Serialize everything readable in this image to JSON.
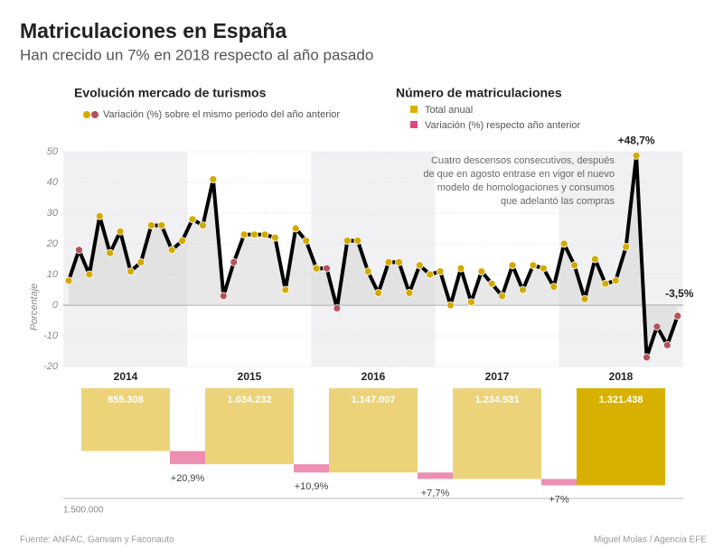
{
  "title": "Matriculaciones en España",
  "subtitle": "Han crecido un 7% en 2018 respecto al año pasado",
  "source": "Fuente: ANFAC, Ganvam y Faconauto",
  "credit": "Miguel Mulas / Agencia EFE",
  "chart_data": [
    {
      "type": "line",
      "title": "Evolución mercado de turismos",
      "ylabel": "Porcentaje",
      "ylim": [
        -20,
        50
      ],
      "yticks": [
        -20,
        -10,
        0,
        10,
        20,
        30,
        40,
        50
      ],
      "grid": true,
      "annotation": [
        "Cuatro descensos consecutivos, después",
        "de que en agosto entrase en vigor el nuevo",
        "modelo de homologaciones y consumos",
        "que adelantó las compras"
      ],
      "series": [
        {
          "name": "Variación (%) sobre el mismo periodo del año anterior",
          "color": "#000000",
          "values": [
            8,
            18,
            10,
            29,
            17,
            24,
            11,
            14,
            26,
            26,
            18,
            21,
            28,
            26,
            41,
            3,
            14,
            23,
            23,
            23,
            22,
            5,
            25,
            21,
            12,
            12,
            -1,
            21,
            21,
            11,
            4,
            14,
            14,
            4,
            13,
            10,
            11,
            0,
            12,
            1,
            11,
            7,
            3,
            13,
            5,
            13,
            12,
            6,
            20,
            13,
            2,
            15,
            7,
            8,
            19,
            48.7,
            -17,
            -7,
            -13,
            -3.5
          ],
          "value_labels": [
            null,
            null,
            null,
            null,
            null,
            null,
            null,
            null,
            null,
            null,
            null,
            null,
            null,
            null,
            null,
            null,
            null,
            null,
            null,
            null,
            null,
            null,
            null,
            null,
            null,
            null,
            null,
            null,
            null,
            null,
            null,
            null,
            null,
            null,
            null,
            null,
            null,
            null,
            null,
            null,
            null,
            null,
            null,
            null,
            null,
            null,
            null,
            null,
            null,
            null,
            null,
            null,
            null,
            null,
            null,
            "+48,7%",
            null,
            null,
            null,
            "-3,5%"
          ],
          "marker_colors": [
            "#d4a900",
            "#b5505a",
            "#d4a900",
            "#d4a900",
            "#d4a900",
            "#d4a900",
            "#d4a900",
            "#d4a900",
            "#d4a900",
            "#d4a900",
            "#d4a900",
            "#d4a900",
            "#d4a900",
            "#d4a900",
            "#d4a900",
            "#b5505a",
            "#b5505a",
            "#d4a900",
            "#d4a900",
            "#d4a900",
            "#d4a900",
            "#d4a900",
            "#d4a900",
            "#d4a900",
            "#d4a900",
            "#b5505a",
            "#b5505a",
            "#d4a900",
            "#d4a900",
            "#d4a900",
            "#d4a900",
            "#d4a900",
            "#d4a900",
            "#d4a900",
            "#d4a900",
            "#d4a900",
            "#d4a900",
            "#d4a900",
            "#d4a900",
            "#d4a900",
            "#d4a900",
            "#d4a900",
            "#d4a900",
            "#d4a900",
            "#d4a900",
            "#d4a900",
            "#d4a900",
            "#d4a900",
            "#d4a900",
            "#d4a900",
            "#d4a900",
            "#d4a900",
            "#d4a900",
            "#d4a900",
            "#d4a900",
            "#d4a900",
            "#b5505a",
            "#b5505a",
            "#b5505a",
            "#b5505a"
          ]
        }
      ]
    },
    {
      "type": "bar",
      "title": "Número de matriculaciones",
      "categories": [
        "2014",
        "2015",
        "2016",
        "2017",
        "2018"
      ],
      "ylim": [
        0,
        1500000
      ],
      "yticks": [
        {
          "value": 1500000,
          "label": "1.500.000"
        }
      ],
      "series": [
        {
          "name": "Total anual",
          "color": "#d8b100",
          "colors": [
            "#ecd37a",
            "#ecd37a",
            "#ecd37a",
            "#ecd37a",
            "#d8b100"
          ],
          "values": [
            855308,
            1034232,
            1147007,
            1234931,
            1321438
          ],
          "value_labels": [
            "855.308",
            "1.034.232",
            "1.147.007",
            "1.234.931",
            "1.321.438"
          ]
        },
        {
          "name": "Variación (%) respecto año anterior",
          "color": "#e0457f",
          "values": [
            null,
            20.9,
            10.9,
            7.7,
            7
          ],
          "value_labels": [
            null,
            "+20,9%",
            "+10,9%",
            "+7,7%",
            "+7%"
          ]
        }
      ]
    }
  ]
}
